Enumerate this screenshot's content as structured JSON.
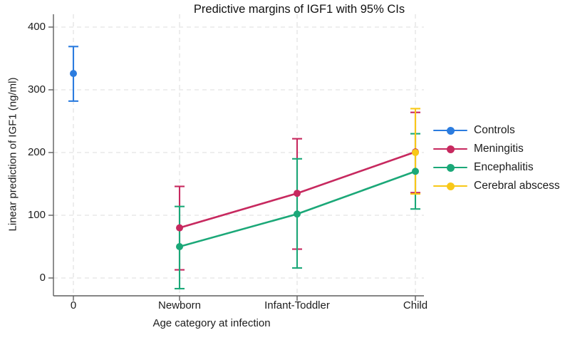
{
  "figure": {
    "title": "Predictive margins of IGF1 with 95% CIs"
  },
  "chart_data": {
    "type": "line",
    "title": "Predictive margins of IGF1 with 95% CIs",
    "xlabel": "Age category at infection",
    "ylabel": "Linear prediction of IGF1 (ng/ml)",
    "categories": [
      "0",
      "Newborn",
      "Infant-Toddler",
      "Child"
    ],
    "y_ticks": [
      0,
      100,
      200,
      300,
      400
    ],
    "ylim": [
      -28,
      420
    ],
    "grid": "dashed horizontal and vertical gridlines",
    "legend_position": "right-outside",
    "error_bars": "95% confidence intervals with caps",
    "series": [
      {
        "name": "Controls",
        "color": "#2b7cdf",
        "connect": false,
        "points": [
          {
            "category": "0",
            "category_index": 0,
            "value": 326,
            "ci_low": 282,
            "ci_high": 369
          }
        ]
      },
      {
        "name": "Meningitis",
        "color": "#c7295f",
        "connect": true,
        "points": [
          {
            "category": "Newborn",
            "category_index": 1,
            "value": 80,
            "ci_low": 13,
            "ci_high": 146
          },
          {
            "category": "Infant-Toddler",
            "category_index": 2,
            "value": 135,
            "ci_low": 46,
            "ci_high": 222
          },
          {
            "category": "Child",
            "category_index": 3,
            "value": 201,
            "ci_low": 136,
            "ci_high": 264
          }
        ]
      },
      {
        "name": "Encephalitis",
        "color": "#1ba878",
        "connect": true,
        "points": [
          {
            "category": "Newborn",
            "category_index": 1,
            "value": 50,
            "ci_low": -17,
            "ci_high": 114
          },
          {
            "category": "Infant-Toddler",
            "category_index": 2,
            "value": 102,
            "ci_low": 16,
            "ci_high": 190
          },
          {
            "category": "Child",
            "category_index": 3,
            "value": 170,
            "ci_low": 110,
            "ci_high": 230
          }
        ]
      },
      {
        "name": "Cerebral abscess",
        "color": "#f8c818",
        "connect": false,
        "points": [
          {
            "category": "Child",
            "category_index": 3,
            "value": 200,
            "ci_low": 134,
            "ci_high": 270
          }
        ]
      }
    ],
    "colors": {
      "grid": "#dedede",
      "axis": "#5f5f5f",
      "text": "#1c1c1c",
      "background": "#ffffff"
    }
  }
}
